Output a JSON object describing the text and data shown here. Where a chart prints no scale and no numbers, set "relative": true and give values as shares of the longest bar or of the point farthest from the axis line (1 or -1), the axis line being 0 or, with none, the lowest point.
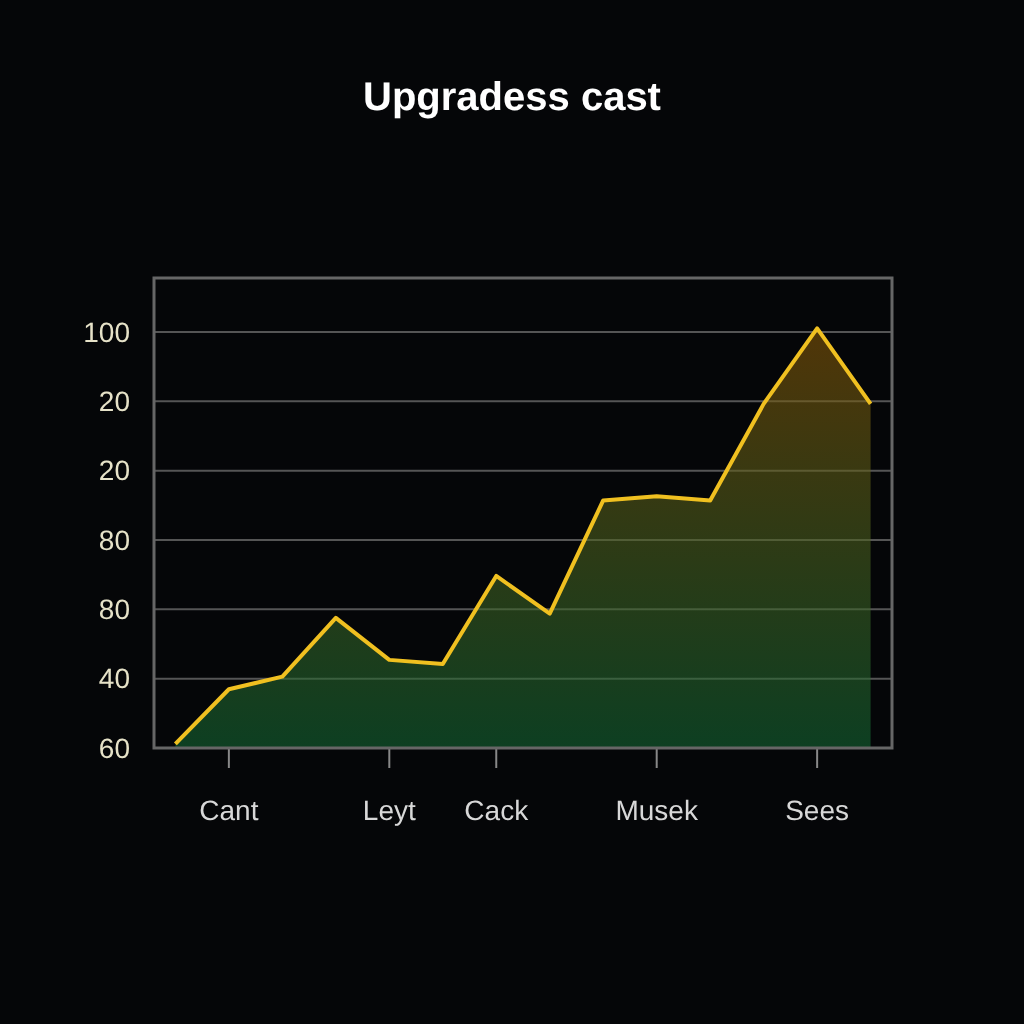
{
  "chart_data": {
    "type": "area",
    "title": "Upgradess cast",
    "relative": true,
    "categories": [
      null,
      "Cant",
      null,
      null,
      "Leyt",
      null,
      "Cack",
      null,
      null,
      "Musek",
      null,
      null,
      "Sees",
      null
    ],
    "series": [
      {
        "color": "#f0c020",
        "values": [
          0.01,
          0.14,
          0.17,
          0.31,
          0.21,
          0.2,
          0.41,
          0.32,
          0.59,
          0.6,
          0.59,
          0.82,
          1,
          0.82
        ]
      }
    ],
    "annotations": [
      "100",
      "20",
      "20",
      "80",
      "80",
      "40",
      "60"
    ],
    "grid": "y",
    "legend": false
  }
}
